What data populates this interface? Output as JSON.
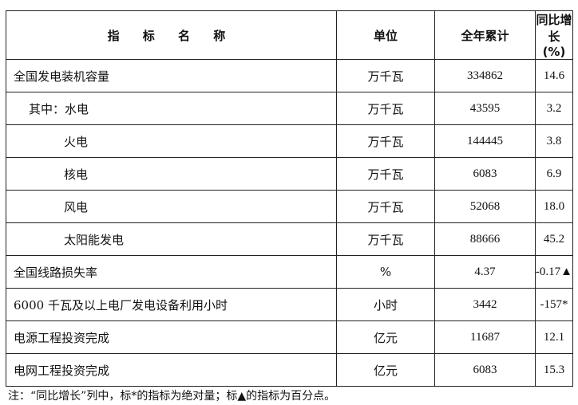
{
  "header": {
    "name": "指 标 名 称",
    "unit": "单位",
    "total": "全年累计",
    "growth_line1": "同比增长",
    "growth_line2": "(%)"
  },
  "rows": [
    {
      "name": "全国发电装机容量",
      "unit": "万千瓦",
      "total": "334862",
      "growth": "14.6",
      "indent": 0
    },
    {
      "name": "其中：水电",
      "unit": "万千瓦",
      "total": "43595",
      "growth": "3.2",
      "indent": 1
    },
    {
      "name": "火电",
      "unit": "万千瓦",
      "total": "144445",
      "growth": "3.8",
      "indent": 2
    },
    {
      "name": "核电",
      "unit": "万千瓦",
      "total": "6083",
      "growth": "6.9",
      "indent": 2
    },
    {
      "name": "风电",
      "unit": "万千瓦",
      "total": "52068",
      "growth": "18.0",
      "indent": 2
    },
    {
      "name": "太阳能发电",
      "unit": "万千瓦",
      "total": "88666",
      "growth": "45.2",
      "indent": 2
    },
    {
      "name": "全国线路损失率",
      "unit": "%",
      "total": "4.37",
      "growth": "-0.17▲",
      "indent": 0
    },
    {
      "name": "6000 千瓦及以上电厂发电设备利用小时",
      "unit": "小时",
      "total": "3442",
      "growth": "-157*",
      "indent": 0
    },
    {
      "name": "电源工程投资完成",
      "unit": "亿元",
      "total": "11687",
      "growth": "12.1",
      "indent": 0
    },
    {
      "name": "电网工程投资完成",
      "unit": "亿元",
      "total": "6083",
      "growth": "15.3",
      "indent": 0
    }
  ],
  "note": "注：“同比增长”列中，标*的指标为绝对量；标▲的指标为百分点。"
}
